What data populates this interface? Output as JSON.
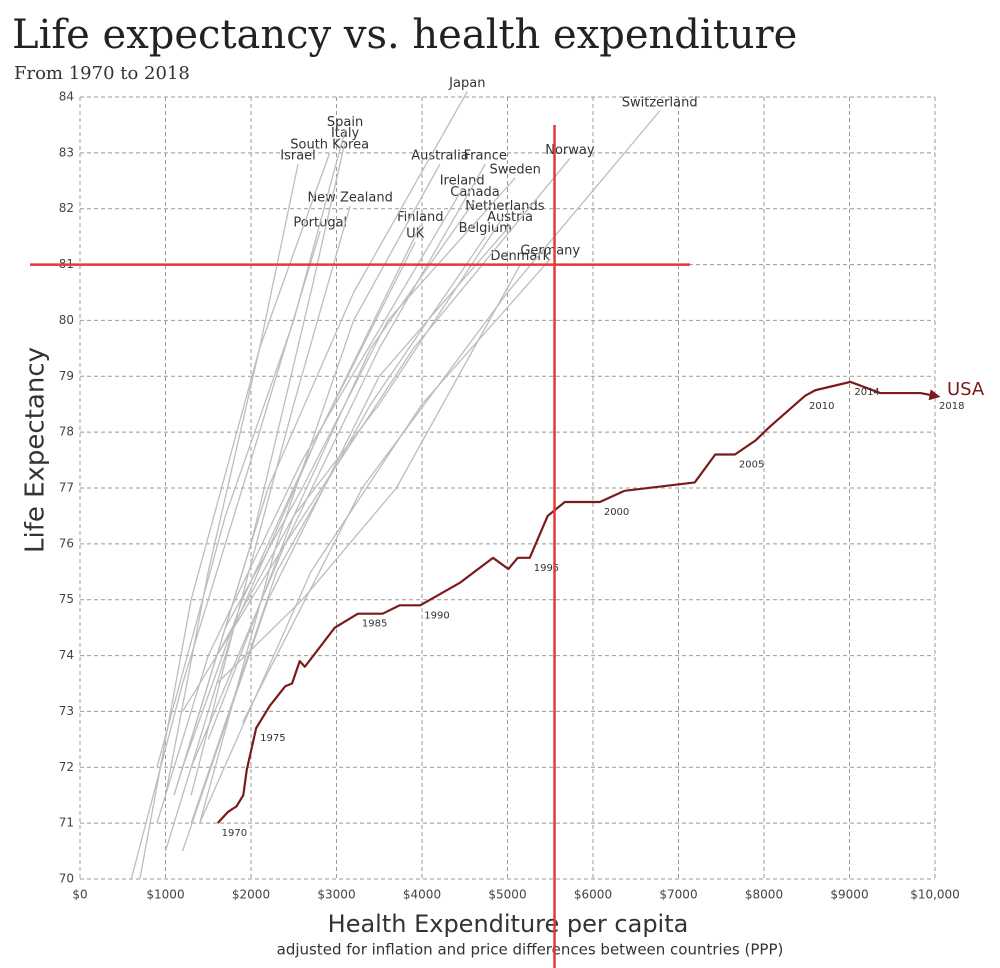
{
  "chart_data": {
    "type": "line",
    "title": "Life expectancy vs. health expenditure",
    "subtitle": "From 1970 to 2018",
    "y_label": "Life Expectancy",
    "x_label": "Health Expenditure per capita",
    "x_sublabel": "adjusted for inflation and price differences between countries (PPP)",
    "xlim": [
      0,
      10000
    ],
    "ylim": [
      70,
      84
    ],
    "xticks": [
      {
        "value": 0,
        "label": "$0"
      },
      {
        "value": 1000,
        "label": "$1000"
      },
      {
        "value": 2000,
        "label": "$2000"
      },
      {
        "value": 3000,
        "label": "$3000"
      },
      {
        "value": 4000,
        "label": "$4000"
      },
      {
        "value": 5000,
        "label": "$5000"
      },
      {
        "value": 6000,
        "label": "$6000"
      },
      {
        "value": 7000,
        "label": "$7000"
      },
      {
        "value": 8000,
        "label": "$8000"
      },
      {
        "value": 9000,
        "label": "$9000"
      },
      {
        "value": 10000,
        "label": "$10,000"
      }
    ],
    "yticks": [
      70,
      71,
      72,
      73,
      74,
      75,
      76,
      77,
      78,
      79,
      80,
      81,
      82,
      83,
      84
    ],
    "grid": true,
    "reference_lines": {
      "x": 5550,
      "y": 81,
      "color": "#e53935"
    },
    "series": [
      {
        "name": "USA",
        "color": "#7b1a1a",
        "x": [
          1610,
          1730,
          1830,
          1910,
          1950,
          2060,
          2220,
          2400,
          2480,
          2570,
          2630,
          2980,
          3250,
          3540,
          3740,
          3980,
          4440,
          4830,
          5010,
          5120,
          5260,
          5470,
          5670,
          6080,
          6370,
          7190,
          7430,
          7660,
          7900,
          8070,
          8480,
          8600,
          9010,
          9360,
          9830,
          10000
        ],
        "values": [
          71.0,
          71.2,
          71.3,
          71.5,
          71.95,
          72.7,
          73.1,
          73.45,
          73.5,
          73.9,
          73.8,
          74.5,
          74.75,
          74.75,
          74.9,
          74.9,
          75.3,
          75.75,
          75.55,
          75.75,
          75.75,
          76.5,
          76.75,
          76.75,
          76.95,
          77.1,
          77.6,
          77.6,
          77.85,
          78.1,
          78.65,
          78.75,
          78.9,
          78.7,
          78.7,
          78.65
        ],
        "point_labels": [
          "1970",
          null,
          null,
          null,
          null,
          "1975",
          null,
          null,
          null,
          null,
          null,
          null,
          "1985",
          null,
          null,
          "1990",
          null,
          null,
          null,
          null,
          "1995",
          null,
          null,
          "2000",
          null,
          null,
          null,
          "2005",
          null,
          null,
          "2010",
          null,
          "2014",
          null,
          null,
          "2018"
        ]
      },
      {
        "name": "Japan",
        "color": "#bdbdbd",
        "x": [
          1100,
          2200,
          3200,
          4530
        ],
        "values": [
          71.5,
          77.0,
          80.5,
          84.1
        ]
      },
      {
        "name": "Switzerland",
        "color": "#bdbdbd",
        "x": [
          1900,
          3300,
          5000,
          6780
        ],
        "values": [
          72.8,
          77.0,
          80.5,
          83.75
        ]
      },
      {
        "name": "Spain",
        "color": "#bdbdbd",
        "x": [
          900,
          1700,
          2500,
          3100
        ],
        "values": [
          72.0,
          76.5,
          80.0,
          83.4
        ]
      },
      {
        "name": "Italy",
        "color": "#bdbdbd",
        "x": [
          1100,
          2000,
          2700,
          3100
        ],
        "values": [
          71.5,
          76.0,
          80.5,
          83.2
        ]
      },
      {
        "name": "Israel",
        "color": "#bdbdbd",
        "x": [
          1000,
          1500,
          2100,
          2550
        ],
        "values": [
          71.5,
          75.5,
          79.5,
          82.8
        ]
      },
      {
        "name": "South Korea",
        "color": "#bdbdbd",
        "x": [
          700,
          1300,
          2100,
          2920
        ],
        "values": [
          70.0,
          75.0,
          79.5,
          83.0
        ]
      },
      {
        "name": "Australia",
        "color": "#bdbdbd",
        "x": [
          1400,
          2300,
          3200,
          4210
        ],
        "values": [
          71.0,
          76.0,
          80.0,
          82.8
        ]
      },
      {
        "name": "France",
        "color": "#bdbdbd",
        "x": [
          1300,
          2400,
          3500,
          4740
        ],
        "values": [
          72.0,
          76.0,
          79.5,
          82.8
        ]
      },
      {
        "name": "Norway",
        "color": "#bdbdbd",
        "x": [
          1200,
          2400,
          3900,
          5730
        ],
        "values": [
          73.0,
          76.0,
          79.5,
          82.9
        ]
      },
      {
        "name": "Sweden",
        "color": "#bdbdbd",
        "x": [
          1700,
          2600,
          3600,
          5090
        ],
        "values": [
          74.5,
          77.0,
          80.0,
          82.55
        ]
      },
      {
        "name": "Ireland",
        "color": "#bdbdbd",
        "x": [
          900,
          1500,
          2600,
          4470
        ],
        "values": [
          71.0,
          74.0,
          77.5,
          82.35
        ]
      },
      {
        "name": "Canada",
        "color": "#bdbdbd",
        "x": [
          1500,
          2500,
          3400,
          4620
        ],
        "values": [
          72.5,
          76.5,
          79.5,
          82.15
        ]
      },
      {
        "name": "New Zealand",
        "color": "#bdbdbd",
        "x": [
          1300,
          1800,
          2500,
          3160
        ],
        "values": [
          71.5,
          74.5,
          78.5,
          82.05
        ]
      },
      {
        "name": "Netherlands",
        "color": "#bdbdbd",
        "x": [
          1600,
          2500,
          3500,
          4970
        ],
        "values": [
          74.0,
          76.5,
          78.5,
          81.9
        ]
      },
      {
        "name": "Finland",
        "color": "#bdbdbd",
        "x": [
          1000,
          1800,
          2800,
          3980
        ],
        "values": [
          70.5,
          74.5,
          78.0,
          81.7
        ]
      },
      {
        "name": "Portugal",
        "color": "#bdbdbd",
        "x": [
          600,
          1200,
          2000,
          2810
        ],
        "values": [
          70.0,
          73.5,
          77.5,
          81.6
        ]
      },
      {
        "name": "Austria",
        "color": "#bdbdbd",
        "x": [
          1200,
          2200,
          3500,
          5030
        ],
        "values": [
          70.5,
          75.0,
          79.0,
          81.7
        ]
      },
      {
        "name": "Belgium",
        "color": "#bdbdbd",
        "x": [
          1300,
          2300,
          3400,
          4740
        ],
        "values": [
          71.0,
          75.5,
          78.5,
          81.5
        ]
      },
      {
        "name": "UK",
        "color": "#bdbdbd",
        "x": [
          1200,
          1900,
          2800,
          3920
        ],
        "values": [
          72.0,
          75.0,
          78.0,
          81.4
        ]
      },
      {
        "name": "Germany",
        "color": "#bdbdbd",
        "x": [
          1400,
          2700,
          4000,
          5500
        ],
        "values": [
          71.0,
          75.5,
          78.5,
          81.1
        ]
      },
      {
        "name": "Denmark",
        "color": "#bdbdbd",
        "x": [
          1600,
          2600,
          3700,
          5150
        ],
        "values": [
          73.5,
          75.0,
          77.0,
          81.0
        ]
      }
    ]
  }
}
